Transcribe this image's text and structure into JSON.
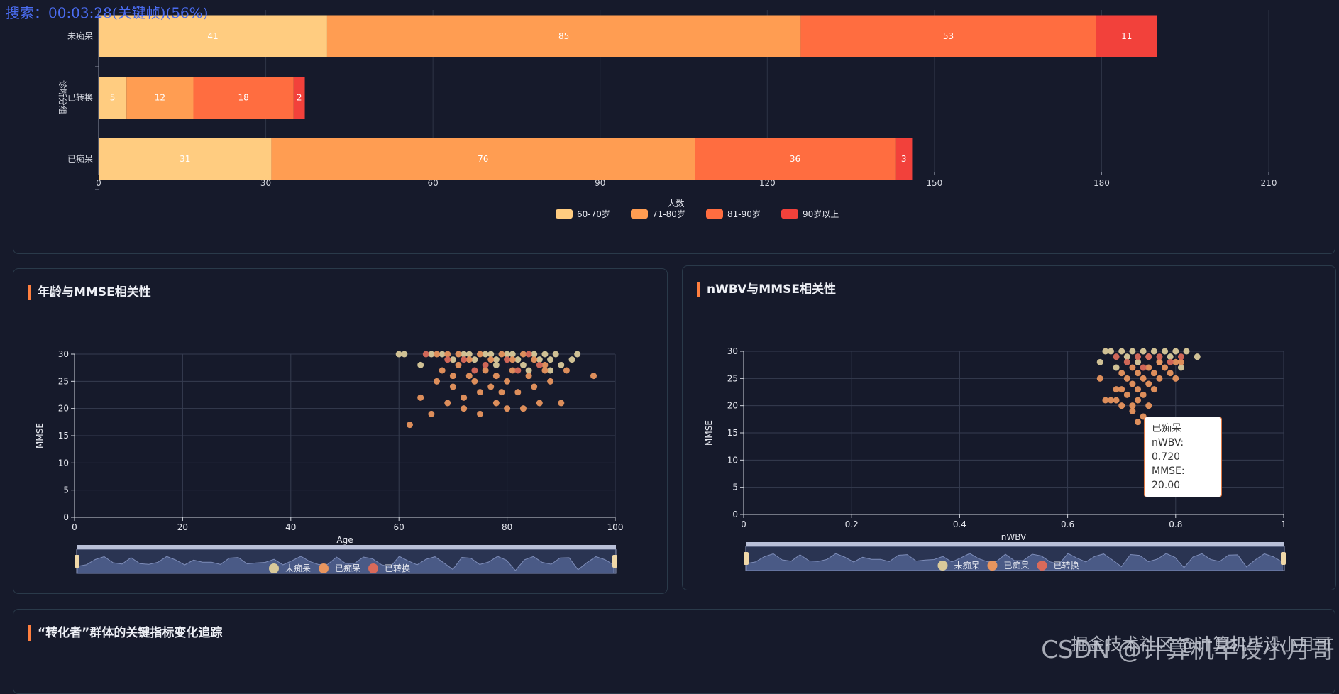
{
  "search_bar": "搜索：00:03:28(关键帧)(56%)",
  "watermark": "CSDN @计算机毕设小月哥",
  "watermark_overlay": "掘金技术社区 @计算机毕设小月哥",
  "colors": {
    "age60": "#ffcc80",
    "age71": "#ff9d52",
    "age81": "#ff6d40",
    "age90": "#f2413b",
    "nondemented": "#d9c99a",
    "demented": "#e8955e",
    "converted": "#d96a5a"
  },
  "chart_data": [
    {
      "type": "bar",
      "orientation": "horizontal",
      "stacked": true,
      "categories": [
        "未痴呆",
        "已转换",
        "已痴呆"
      ],
      "series": [
        {
          "name": "60-70岁",
          "values": [
            41,
            5,
            31
          ]
        },
        {
          "name": "71-80岁",
          "values": [
            85,
            12,
            76
          ]
        },
        {
          "name": "81-90岁",
          "values": [
            53,
            18,
            36
          ]
        },
        {
          "name": "90岁以上",
          "values": [
            11,
            2,
            3
          ]
        }
      ],
      "xlabel": "人数",
      "ylabel": "诊断分组",
      "xlim": [
        0,
        210
      ],
      "xticks": [
        "0",
        "30",
        "60",
        "90",
        "120",
        "150",
        "180",
        "210"
      ],
      "legend": "bottom"
    },
    {
      "type": "scatter",
      "title": "年龄与MMSE相关性",
      "xlabel": "Age",
      "ylabel": "MMSE",
      "xlim": [
        0,
        100
      ],
      "ylim": [
        0,
        30
      ],
      "xticks": [
        "0",
        "20",
        "40",
        "60",
        "80",
        "100"
      ],
      "yticks": [
        "0",
        "5",
        "10",
        "15",
        "20",
        "25",
        "30"
      ],
      "legend": [
        "未痴呆",
        "已痴呆",
        "已转换"
      ],
      "series": [
        {
          "name": "未痴呆",
          "points": [
            [
              60,
              30
            ],
            [
              61,
              30
            ],
            [
              66,
              30
            ],
            [
              68,
              30
            ],
            [
              70,
              29
            ],
            [
              72,
              30
            ],
            [
              73,
              30
            ],
            [
              74,
              29
            ],
            [
              76,
              30
            ],
            [
              77,
              30
            ],
            [
              78,
              29
            ],
            [
              80,
              30
            ],
            [
              81,
              30
            ],
            [
              82,
              29
            ],
            [
              83,
              28
            ],
            [
              85,
              30
            ],
            [
              86,
              29
            ],
            [
              87,
              30
            ],
            [
              88,
              29
            ],
            [
              89,
              30
            ],
            [
              90,
              28
            ],
            [
              92,
              29
            ],
            [
              93,
              30
            ],
            [
              64,
              28
            ],
            [
              78,
              28
            ],
            [
              84,
              27
            ],
            [
              88,
              27
            ]
          ]
        },
        {
          "name": "已痴呆",
          "points": [
            [
              62,
              17
            ],
            [
              64,
              22
            ],
            [
              66,
              19
            ],
            [
              67,
              25
            ],
            [
              68,
              27
            ],
            [
              69,
              21
            ],
            [
              70,
              26
            ],
            [
              70,
              24
            ],
            [
              71,
              28
            ],
            [
              72,
              22
            ],
            [
              72,
              20
            ],
            [
              73,
              26
            ],
            [
              74,
              25
            ],
            [
              75,
              23
            ],
            [
              75,
              19
            ],
            [
              76,
              27
            ],
            [
              77,
              24
            ],
            [
              78,
              26
            ],
            [
              78,
              21
            ],
            [
              79,
              23
            ],
            [
              80,
              25
            ],
            [
              80,
              20
            ],
            [
              81,
              27
            ],
            [
              82,
              23
            ],
            [
              83,
              20
            ],
            [
              84,
              26
            ],
            [
              85,
              24
            ],
            [
              86,
              21
            ],
            [
              87,
              27
            ],
            [
              88,
              25
            ],
            [
              90,
              21
            ],
            [
              91,
              27
            ],
            [
              96,
              26
            ],
            [
              67,
              30
            ],
            [
              69,
              30
            ],
            [
              71,
              30
            ],
            [
              73,
              29
            ],
            [
              75,
              30
            ],
            [
              77,
              29
            ],
            [
              79,
              30
            ],
            [
              81,
              29
            ],
            [
              83,
              30
            ],
            [
              85,
              29
            ],
            [
              87,
              28
            ]
          ]
        },
        {
          "name": "已转换",
          "points": [
            [
              65,
              30
            ],
            [
              69,
              29
            ],
            [
              72,
              29
            ],
            [
              76,
              28
            ],
            [
              80,
              29
            ],
            [
              84,
              30
            ],
            [
              86,
              28
            ],
            [
              74,
              27
            ],
            [
              82,
              27
            ]
          ]
        }
      ]
    },
    {
      "type": "scatter",
      "title": "nWBV与MMSE相关性",
      "xlabel": "nWBV",
      "ylabel": "MMSE",
      "xlim": [
        0,
        1
      ],
      "ylim": [
        0,
        30
      ],
      "xticks": [
        "0",
        "0.2",
        "0.4",
        "0.6",
        "0.8",
        "1"
      ],
      "yticks": [
        "0",
        "5",
        "10",
        "15",
        "20",
        "25",
        "30"
      ],
      "legend": [
        "未痴呆",
        "已痴呆",
        "已转换"
      ],
      "series": [
        {
          "name": "未痴呆",
          "points": [
            [
              0.67,
              30
            ],
            [
              0.68,
              30
            ],
            [
              0.7,
              30
            ],
            [
              0.72,
              30
            ],
            [
              0.74,
              30
            ],
            [
              0.76,
              30
            ],
            [
              0.78,
              30
            ],
            [
              0.8,
              30
            ],
            [
              0.82,
              30
            ],
            [
              0.84,
              29
            ],
            [
              0.79,
              29
            ],
            [
              0.75,
              29
            ],
            [
              0.71,
              29
            ],
            [
              0.73,
              28
            ],
            [
              0.77,
              28
            ],
            [
              0.81,
              27
            ],
            [
              0.66,
              28
            ],
            [
              0.69,
              27
            ]
          ]
        },
        {
          "name": "已痴呆",
          "points": [
            [
              0.66,
              25
            ],
            [
              0.67,
              21
            ],
            [
              0.68,
              21
            ],
            [
              0.69,
              23
            ],
            [
              0.69,
              21
            ],
            [
              0.7,
              26
            ],
            [
              0.7,
              23
            ],
            [
              0.7,
              20
            ],
            [
              0.71,
              25
            ],
            [
              0.71,
              22
            ],
            [
              0.72,
              27
            ],
            [
              0.72,
              24
            ],
            [
              0.72,
              19
            ],
            [
              0.73,
              26
            ],
            [
              0.73,
              23
            ],
            [
              0.73,
              21
            ],
            [
              0.73,
              17
            ],
            [
              0.74,
              25
            ],
            [
              0.74,
              22
            ],
            [
              0.74,
              18
            ],
            [
              0.75,
              27
            ],
            [
              0.75,
              24
            ],
            [
              0.75,
              20
            ],
            [
              0.76,
              26
            ],
            [
              0.76,
              23
            ],
            [
              0.77,
              28
            ],
            [
              0.77,
              25
            ],
            [
              0.78,
              27
            ],
            [
              0.79,
              26
            ],
            [
              0.8,
              28
            ],
            [
              0.8,
              25
            ],
            [
              0.81,
              28
            ],
            [
              0.72,
              20
            ]
          ]
        },
        {
          "name": "已转换",
          "points": [
            [
              0.69,
              29
            ],
            [
              0.71,
              28
            ],
            [
              0.73,
              29
            ],
            [
              0.75,
              29
            ],
            [
              0.77,
              29
            ],
            [
              0.79,
              28
            ],
            [
              0.81,
              29
            ],
            [
              0.74,
              27
            ]
          ]
        }
      ],
      "tooltip": {
        "group": "已痴呆",
        "nwbv": "nWBV: 0.720",
        "mmse": "MMSE: 20.00"
      }
    }
  ],
  "panels": {
    "age_mmse_title": "年龄与MMSE相关性",
    "nwbv_mmse_title": "nWBV与MMSE相关性",
    "converter_title": "“转化者”群体的关键指标变化追踪"
  }
}
